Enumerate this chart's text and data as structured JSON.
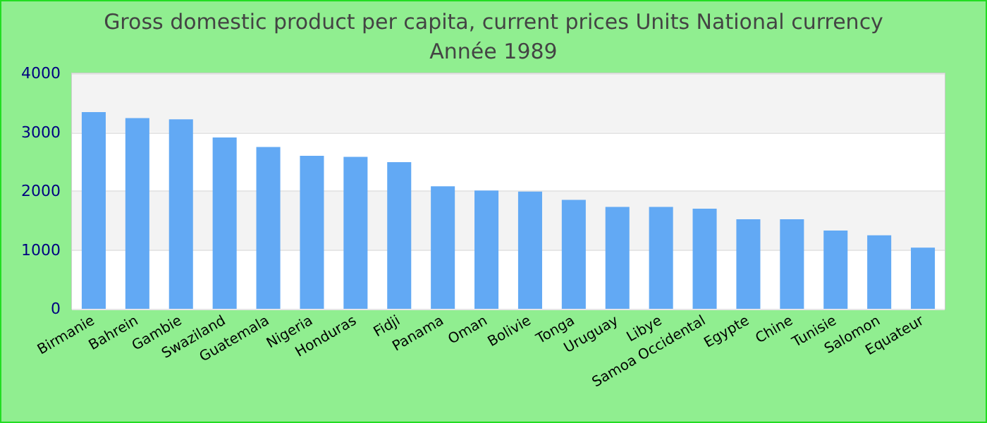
{
  "chart_data": {
    "type": "bar",
    "title": "Gross domestic product per capita, current prices Units National currency",
    "subtitle": "Année 1989",
    "categories": [
      "Birmanie",
      "Bahrein",
      "Gambie",
      "Swaziland",
      "Guatemala",
      "Nigeria",
      "Honduras",
      "Fidji",
      "Panama",
      "Oman",
      "Bolivie",
      "Tonga",
      "Uruguay",
      "Libye",
      "Samoa Occidental",
      "Egypte",
      "Chine",
      "Tunisie",
      "Salomon",
      "Equateur"
    ],
    "values": [
      3340,
      3240,
      3220,
      2910,
      2750,
      2600,
      2580,
      2490,
      2080,
      2010,
      1990,
      1850,
      1730,
      1730,
      1700,
      1520,
      1520,
      1330,
      1250,
      1040
    ],
    "color": "#62a9f4",
    "ylim": [
      0,
      4000
    ],
    "yticks": [
      0,
      1000,
      2000,
      3000,
      4000
    ],
    "grid": "y"
  }
}
